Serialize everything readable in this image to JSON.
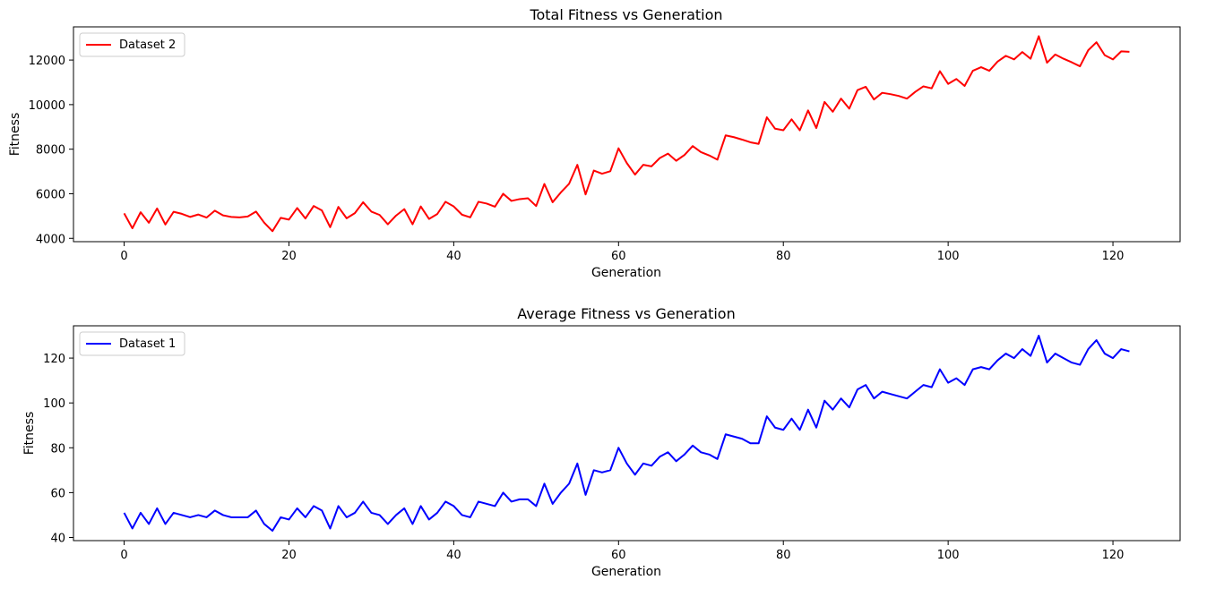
{
  "chart_data": [
    {
      "type": "line",
      "title": "Total Fitness vs Generation",
      "xlabel": "Generation",
      "ylabel": "Fitness",
      "xlim": [
        -6.15,
        128.15
      ],
      "ylim": [
        3850,
        13490
      ],
      "xticks": [
        0,
        20,
        40,
        60,
        80,
        100,
        120
      ],
      "yticks": [
        4000,
        6000,
        8000,
        10000,
        12000
      ],
      "grid": false,
      "legend": "top-left",
      "series": [
        {
          "name": "Dataset 2",
          "color": "#ff0000",
          "x_start": 0,
          "x_step": 1,
          "values": [
            5120,
            4450,
            5170,
            4700,
            5340,
            4620,
            5190,
            5100,
            4960,
            5070,
            4930,
            5240,
            5030,
            4960,
            4940,
            4980,
            5200,
            4700,
            4320,
            4920,
            4840,
            5360,
            4890,
            5450,
            5250,
            4500,
            5410,
            4900,
            5130,
            5620,
            5200,
            5050,
            4630,
            5020,
            5310,
            4630,
            5430,
            4870,
            5090,
            5640,
            5430,
            5060,
            4940,
            5640,
            5560,
            5420,
            6000,
            5680,
            5760,
            5800,
            5450,
            6440,
            5620,
            6060,
            6450,
            7300,
            5970,
            7040,
            6900,
            7010,
            8040,
            7380,
            6860,
            7300,
            7230,
            7600,
            7800,
            7480,
            7740,
            8140,
            7870,
            7720,
            7530,
            8620,
            8540,
            8430,
            8310,
            8240,
            9430,
            8920,
            8850,
            9340,
            8850,
            9740,
            8950,
            10120,
            9680,
            10270,
            9820,
            10650,
            10800,
            10230,
            10530,
            10470,
            10390,
            10270,
            10570,
            10820,
            10730,
            11500,
            10930,
            11150,
            10840,
            11520,
            11680,
            11520,
            11930,
            12190,
            12030,
            12360,
            12060,
            13070,
            11880,
            12250,
            12060,
            11900,
            11720,
            12440,
            12800,
            12220,
            12030,
            12390,
            12370
          ]
        }
      ]
    },
    {
      "type": "line",
      "title": "Average Fitness vs Generation",
      "xlabel": "Generation",
      "ylabel": "Fitness",
      "xlim": [
        -6.15,
        128.15
      ],
      "ylim": [
        38.6,
        134.4
      ],
      "xticks": [
        0,
        20,
        40,
        60,
        80,
        100,
        120
      ],
      "yticks": [
        40,
        60,
        80,
        100,
        120
      ],
      "grid": false,
      "legend": "top-left",
      "series": [
        {
          "name": "Dataset 1",
          "color": "#0000ff",
          "x_start": 0,
          "x_step": 1,
          "values": [
            51,
            44,
            51,
            46,
            53,
            46,
            51,
            50,
            49,
            50,
            49,
            52,
            50,
            49,
            49,
            49,
            52,
            46,
            43,
            49,
            48,
            53,
            49,
            54,
            52,
            44,
            54,
            49,
            51,
            56,
            51,
            50,
            46,
            50,
            53,
            46,
            54,
            48,
            51,
            56,
            54,
            50,
            49,
            56,
            55,
            54,
            60,
            56,
            57,
            57,
            54,
            64,
            55,
            60,
            64,
            73,
            59,
            70,
            69,
            70,
            80,
            73,
            68,
            73,
            72,
            76,
            78,
            74,
            77,
            81,
            78,
            77,
            75,
            86,
            85,
            84,
            82,
            82,
            94,
            89,
            88,
            93,
            88,
            97,
            89,
            101,
            97,
            102,
            98,
            106,
            108,
            102,
            105,
            104,
            103,
            102,
            105,
            108,
            107,
            115,
            109,
            111,
            108,
            115,
            116,
            115,
            119,
            122,
            120,
            124,
            121,
            130,
            118,
            122,
            120,
            118,
            117,
            124,
            128,
            122,
            120,
            124,
            123
          ]
        }
      ]
    }
  ]
}
